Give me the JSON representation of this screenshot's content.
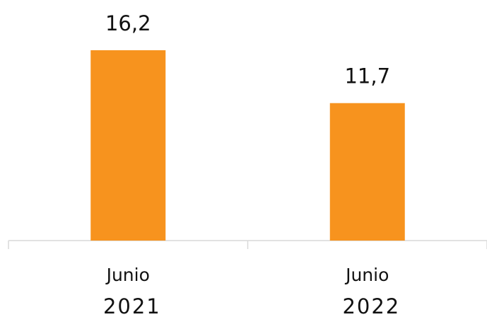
{
  "chart_data": {
    "type": "bar",
    "categories": [
      "Junio 2021",
      "Junio 2022"
    ],
    "values": [
      16.2,
      11.7
    ],
    "value_labels": [
      "16,2",
      "11,7"
    ],
    "color": "#f7931e"
  }
}
